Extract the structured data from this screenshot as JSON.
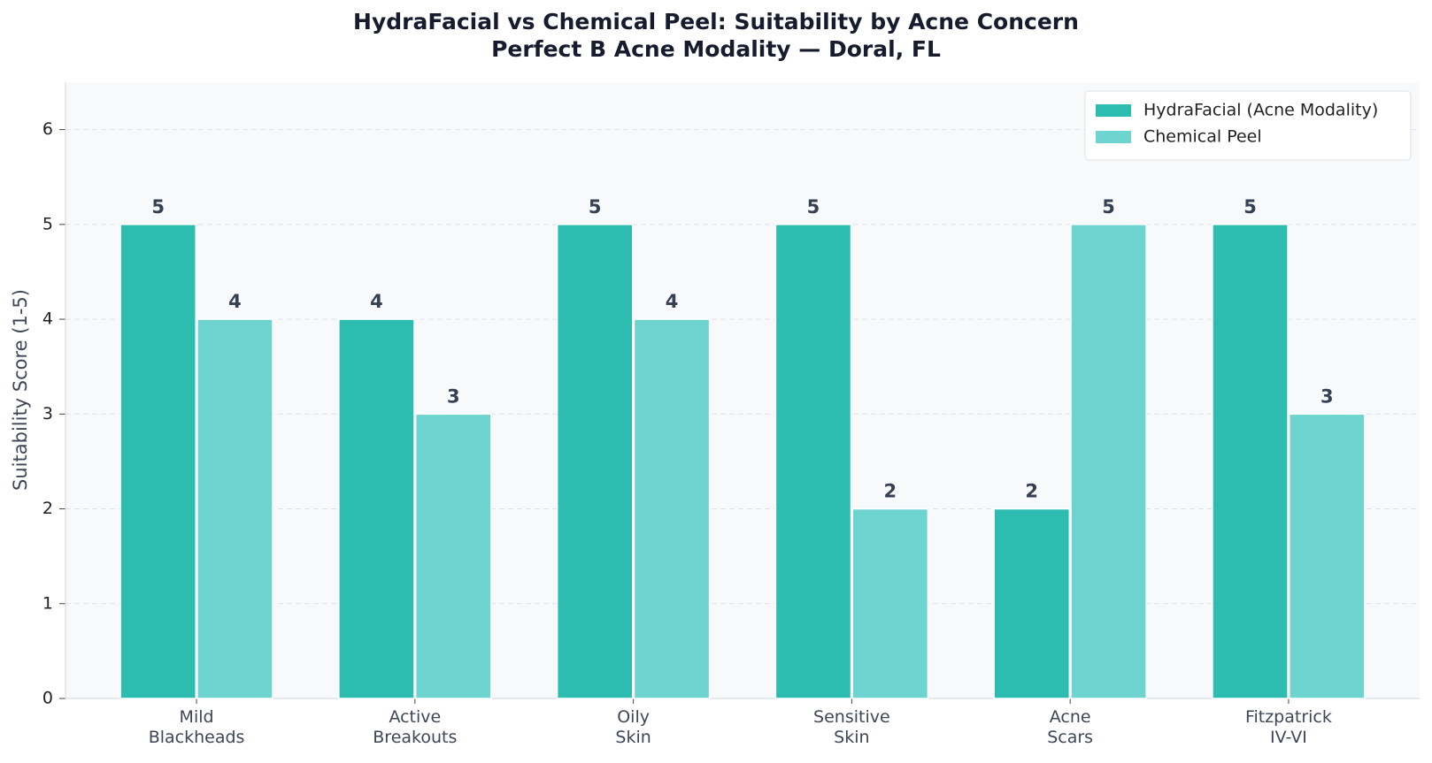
{
  "chart_data": {
    "type": "bar",
    "title": "HydraFacial vs Chemical Peel: Suitability by Acne Concern",
    "subtitle": "Perfect B Acne Modality — Doral, FL",
    "y_label": "Suitability Score (1-5)",
    "categories": [
      "Mild\nBlackheads",
      "Active\nBreakouts",
      "Oily\nSkin",
      "Sensitive\nSkin",
      "Acne\nScars",
      "Fitzpatrick\nIV-VI"
    ],
    "series": [
      {
        "name": "HydraFacial (Acne Modality)",
        "color": "#2dbdb0",
        "values": [
          5,
          4,
          5,
          5,
          2,
          5
        ]
      },
      {
        "name": "Chemical Peel",
        "color": "#6dd4cf",
        "values": [
          4,
          3,
          4,
          2,
          5,
          3
        ]
      }
    ],
    "ylim": [
      0,
      6.5
    ],
    "yticks": [
      0,
      1,
      2,
      3,
      4,
      5,
      6
    ],
    "grid": true,
    "legend": "upper right"
  }
}
